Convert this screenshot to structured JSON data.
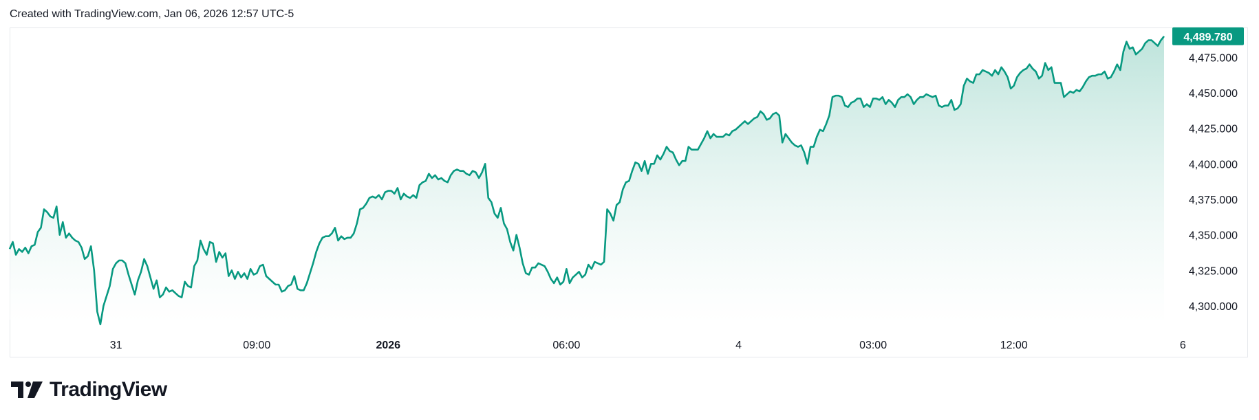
{
  "header": {
    "caption": "Created with TradingView.com, Jan 06, 2026 12:57 UTC-5"
  },
  "brand": {
    "name": "TradingView",
    "logo_icon": "tradingview-logo-icon"
  },
  "colors": {
    "line": "#089981",
    "fill_top": "#b2dfd5",
    "fill_bottom": "#ffffff",
    "tag_bg": "#089981"
  },
  "chart_data": {
    "type": "area",
    "title": "",
    "ylim": [
      4285,
      4495
    ],
    "yticks": [
      "4,300.000",
      "4,325.000",
      "4,350.000",
      "4,375.000",
      "4,400.000",
      "4,425.000",
      "4,450.000",
      "4,475.000"
    ],
    "ytick_values": [
      4300,
      4325,
      4350,
      4375,
      4400,
      4425,
      4450,
      4475
    ],
    "xticks": [
      {
        "label": "31",
        "bold": false,
        "index": 34
      },
      {
        "label": "09:00",
        "bold": false,
        "index": 79
      },
      {
        "label": "2026",
        "bold": true,
        "index": 121
      },
      {
        "label": "06:00",
        "bold": false,
        "index": 178
      },
      {
        "label": "4",
        "bold": false,
        "index": 233
      },
      {
        "label": "03:00",
        "bold": false,
        "index": 276
      },
      {
        "label": "12:00",
        "bold": false,
        "index": 321
      },
      {
        "label": "6",
        "bold": false,
        "index": 375
      },
      {
        "label": "12:00",
        "bold": false,
        "index": 428
      }
    ],
    "last_price": "4,489.780",
    "last_value": 4489.78,
    "grid": false,
    "series": [
      {
        "values": [
          4340,
          4345,
          4336,
          4340,
          4338,
          4341,
          4337,
          4342,
          4343,
          4352,
          4355,
          4368,
          4366,
          4363,
          4362,
          4370,
          4350,
          4359,
          4348,
          4351,
          4348,
          4346,
          4345,
          4341,
          4333,
          4335,
          4342,
          4325,
          4296,
          4287,
          4300,
          4307,
          4314,
          4326,
          4330,
          4332,
          4332,
          4330,
          4322,
          4315,
          4308,
          4318,
          4324,
          4333,
          4328,
          4320,
          4312,
          4318,
          4306,
          4308,
          4313,
          4310,
          4311,
          4309,
          4307,
          4306,
          4317,
          4314,
          4313,
          4328,
          4332,
          4346,
          4340,
          4336,
          4345,
          4344,
          4331,
          4338,
          4334,
          4337,
          4321,
          4325,
          4319,
          4324,
          4320,
          4323,
          4319,
          4326,
          4322,
          4323,
          4328,
          4329,
          4321,
          4319,
          4317,
          4315,
          4315,
          4310,
          4311,
          4314,
          4315,
          4321,
          4312,
          4311,
          4311,
          4316,
          4323,
          4330,
          4338,
          4344,
          4348,
          4349,
          4349,
          4351,
          4355,
          4346,
          4349,
          4347,
          4348,
          4348,
          4351,
          4358,
          4368,
          4369,
          4372,
          4376,
          4377,
          4376,
          4378,
          4375,
          4380,
          4381,
          4381,
          4379,
          4383,
          4375,
          4379,
          4377,
          4376,
          4378,
          4376,
          4385,
          4387,
          4388,
          4393,
          4390,
          4392,
          4389,
          4390,
          4388,
          4387,
          4392,
          4395,
          4396,
          4395,
          4395,
          4393,
          4392,
          4395,
          4394,
          4390,
          4394,
          4400,
          4376,
          4373,
          4365,
          4362,
          4369,
          4358,
          4354,
          4345,
          4339,
          4350,
          4341,
          4330,
          4323,
          4322,
          4327,
          4327,
          4330,
          4329,
          4328,
          4324,
          4319,
          4316,
          4320,
          4315,
          4317,
          4326,
          4316,
          4320,
          4322,
          4324,
          4320,
          4322,
          4329,
          4326,
          4331,
          4330,
          4329,
          4331,
          4368,
          4365,
          4360,
          4371,
          4373,
          4382,
          4387,
          4388,
          4395,
          4401,
          4400,
          4395,
          4402,
          4393,
          4400,
          4400,
          4406,
          4403,
          4407,
          4412,
          4409,
          4408,
          4403,
          4399,
          4402,
          4402,
          4412,
          4410,
          4410,
          4410,
          4414,
          4418,
          4423,
          4418,
          4421,
          4419,
          4419,
          4419,
          4421,
          4420,
          4423,
          4424,
          4426,
          4428,
          4430,
          4428,
          4430,
          4432,
          4433,
          4437,
          4435,
          4431,
          4432,
          4435,
          4436,
          4434,
          4415,
          4421,
          4418,
          4415,
          4413,
          4412,
          4413,
          4408,
          4400,
          4412,
          4412,
          4419,
          4424,
          4423,
          4428,
          4434,
          4447,
          4448,
          4448,
          4447,
          4441,
          4440,
          4443,
          4444,
          4446,
          4446,
          4440,
          4442,
          4440,
          4446,
          4446,
          4445,
          4447,
          4442,
          4445,
          4443,
          4440,
          4445,
          4447,
          4447,
          4449,
          4447,
          4442,
          4445,
          4447,
          4447,
          4449,
          4448,
          4447,
          4448,
          4441,
          4440,
          4441,
          4441,
          4445,
          4438,
          4439,
          4442,
          4455,
          4460,
          4458,
          4457,
          4463,
          4463,
          4466,
          4465,
          4464,
          4462,
          4466,
          4463,
          4468,
          4465,
          4461,
          4453,
          4455,
          4461,
          4464,
          4466,
          4467,
          4470,
          4467,
          4465,
          4460,
          4462,
          4471,
          4466,
          4468,
          4457,
          4457,
          4457,
          4447,
          4449,
          4451,
          4450,
          4452,
          4451,
          4454,
          4458,
          4461,
          4462,
          4462,
          4463,
          4463,
          4465,
          4460,
          4461,
          4465,
          4470,
          4466,
          4479,
          4486,
          4481,
          4482,
          4477,
          4479,
          4481,
          4485,
          4487,
          4487,
          4485,
          4483,
          4487,
          4489.78
        ]
      }
    ]
  }
}
